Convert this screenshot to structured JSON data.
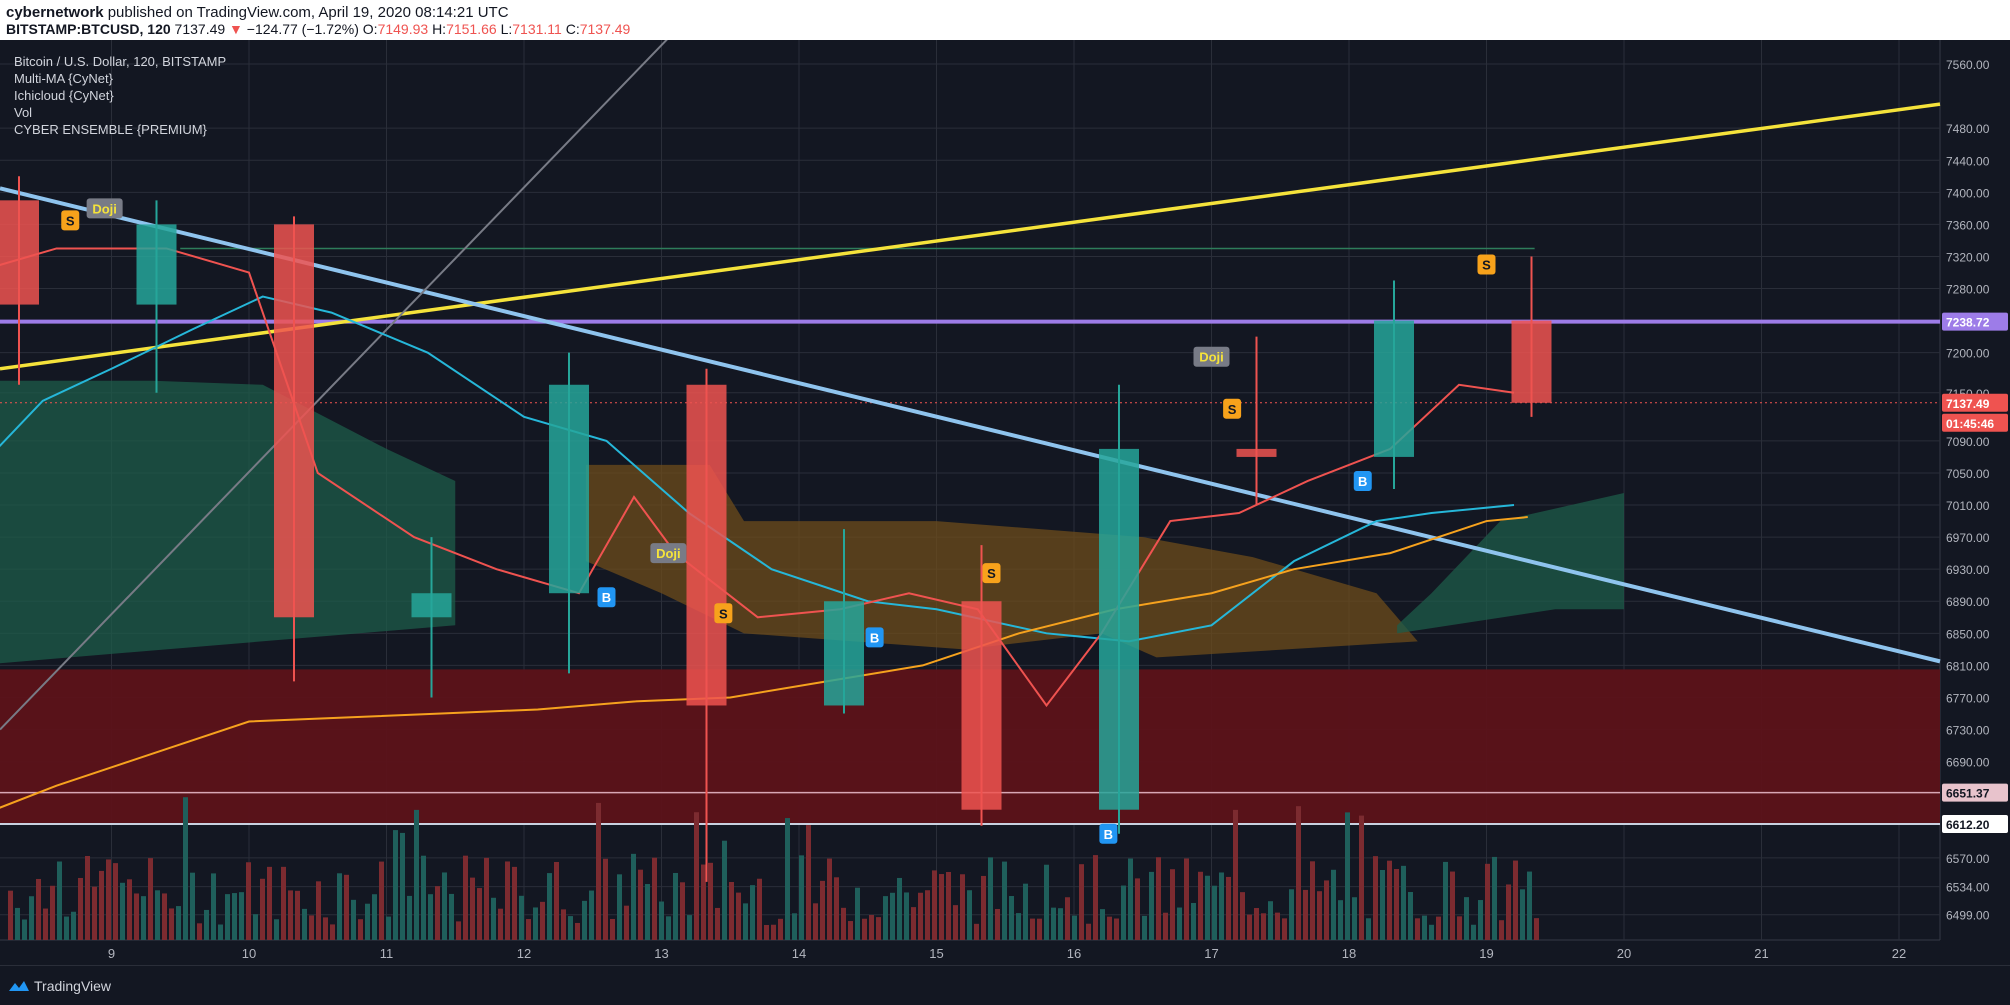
{
  "header": {
    "author": "cybernetwork",
    "published_text": "published on TradingView.com, April 19, 2020 08:14:21 UTC",
    "symbol": "BITSTAMP:BTCUSD, 120",
    "last": "7137.49",
    "change": "−124.77 (−1.72%)",
    "o_label": "O:",
    "o_val": "7149.93",
    "h_label": "H:",
    "h_val": "7151.66",
    "l_label": "L:",
    "l_val": "7131.11",
    "c_label": "C:",
    "c_val": "7137.49"
  },
  "legend": {
    "title": "Bitcoin / U.S. Dollar, 120, BITSTAMP",
    "items": [
      "Multi-MA {CyNet}",
      "Ichicloud {CyNet}",
      "Vol",
      "CYBER ENSEMBLE {PREMIUM}"
    ]
  },
  "footer": {
    "brand": "TradingView"
  },
  "colors": {
    "background": "#131722",
    "up": "#26a69a",
    "down": "#ef5350",
    "trend_yellow": "#f5e33b",
    "trend_blue": "#8fc4ee",
    "level_purple": "#9d7ce8",
    "ema_red": "#ef5350",
    "ma_cyan": "#26b7d9",
    "ma_orange": "#f6a21e"
  },
  "chart_data": {
    "type": "candlestick",
    "symbol": "BITSTAMP:BTCUSD",
    "ylim": [
      6470,
      7580
    ],
    "y_ticks": [
      "7560.00",
      "7480.00",
      "7440.00",
      "7400.00",
      "7360.00",
      "7320.00",
      "7280.00",
      "7200.00",
      "7150.00",
      "7090.00",
      "7050.00",
      "7010.00",
      "6970.00",
      "6930.00",
      "6890.00",
      "6850.00",
      "6810.00",
      "6770.00",
      "6730.00",
      "6690.00",
      "6570.00",
      "6534.00",
      "6499.00"
    ],
    "x_ticks": [
      "9",
      "10",
      "11",
      "12",
      "13",
      "14",
      "15",
      "16",
      "17",
      "18",
      "19",
      "20",
      "21",
      "22"
    ],
    "price_labels": [
      {
        "text": "7238.72",
        "kind": "horizontal-line",
        "value": 7238.72
      },
      {
        "text": "7137.49",
        "kind": "last-price",
        "value": 7137.49
      },
      {
        "text": "01:45:46",
        "kind": "countdown"
      },
      {
        "text": "6651.37",
        "kind": "horizontal-line",
        "value": 6651.37
      },
      {
        "text": "6612.20",
        "kind": "horizontal-line",
        "value": 6612.2
      }
    ],
    "day_candles": [
      {
        "day": "8",
        "o": 7390,
        "h": 7420,
        "l": 7160,
        "c": 7260
      },
      {
        "day": "9",
        "o": 7260,
        "h": 7390,
        "l": 7150,
        "c": 7360
      },
      {
        "day": "10",
        "o": 7360,
        "h": 7370,
        "l": 6790,
        "c": 6870
      },
      {
        "day": "11",
        "o": 6870,
        "h": 6970,
        "l": 6770,
        "c": 6900
      },
      {
        "day": "12",
        "o": 6900,
        "h": 7200,
        "l": 6800,
        "c": 7160
      },
      {
        "day": "13",
        "o": 7160,
        "h": 7180,
        "l": 6540,
        "c": 6760
      },
      {
        "day": "14",
        "o": 6760,
        "h": 6980,
        "l": 6750,
        "c": 6890
      },
      {
        "day": "15",
        "o": 6890,
        "h": 6960,
        "l": 6610,
        "c": 6630
      },
      {
        "day": "16",
        "o": 6630,
        "h": 7160,
        "l": 6600,
        "c": 7080
      },
      {
        "day": "17",
        "o": 7080,
        "h": 7220,
        "l": 7010,
        "c": 7070
      },
      {
        "day": "18",
        "o": 7070,
        "h": 7290,
        "l": 7030,
        "c": 7240
      },
      {
        "day": "19",
        "o": 7240,
        "h": 7320,
        "l": 7120,
        "c": 7137.49
      }
    ],
    "signals": [
      {
        "text": "Doji",
        "day": 8.95,
        "price": 7380
      },
      {
        "text": "S",
        "day": 8.7,
        "price": 7365
      },
      {
        "text": "B",
        "day": 12.6,
        "price": 6895
      },
      {
        "text": "Doji",
        "day": 13.05,
        "price": 6950
      },
      {
        "text": "S",
        "day": 13.45,
        "price": 6875
      },
      {
        "text": "B",
        "day": 14.55,
        "price": 6845
      },
      {
        "text": "S",
        "day": 15.4,
        "price": 6925
      },
      {
        "text": "B",
        "day": 16.25,
        "price": 6600
      },
      {
        "text": "Doji",
        "day": 17.0,
        "price": 7195
      },
      {
        "text": "S",
        "day": 17.15,
        "price": 7130
      },
      {
        "text": "B",
        "day": 18.1,
        "price": 7040
      },
      {
        "text": "S",
        "day": 19.0,
        "price": 7310
      }
    ],
    "levels": [
      7238.72,
      6651.37,
      6612.2
    ],
    "grid": true
  }
}
